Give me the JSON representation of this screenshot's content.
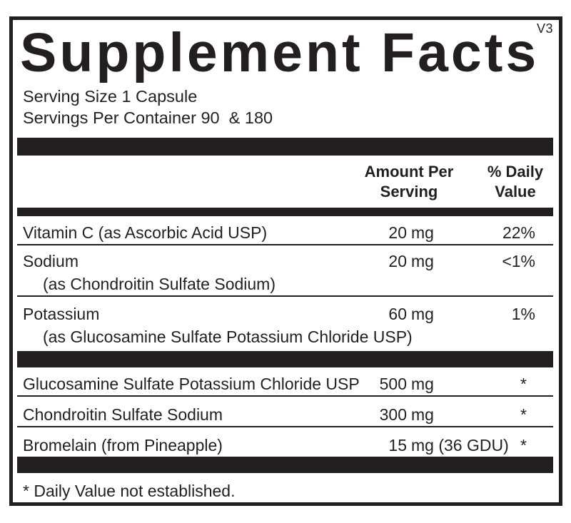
{
  "colors": {
    "ink": "#231f20",
    "background": "#ffffff"
  },
  "version": "V3",
  "title": "Supplement Facts",
  "serving": {
    "size_line": "Serving Size 1 Capsule",
    "per_container_line": "Servings Per Container 90  & 180"
  },
  "columns": {
    "amount_header_line1": "Amount Per",
    "amount_header_line2": "Serving",
    "daily_value_header_line1": "% Daily",
    "daily_value_header_line2": "Value"
  },
  "rows": [
    {
      "name": "Vitamin C (as Ascorbic Acid USP)",
      "num": "20",
      "unit": "mg",
      "pct": "22%"
    },
    {
      "name": "Sodium",
      "sub": "(as Chondroitin Sulfate Sodium)",
      "num": "20",
      "unit": "mg",
      "pct": "<1%"
    },
    {
      "name": "Potassium",
      "sub": "(as Glucosamine Sulfate Potassium Chloride USP)",
      "num": "60",
      "unit": "mg",
      "pct": "1%"
    },
    {
      "name": "Glucosamine Sulfate Potassium Chloride USP",
      "num": "500",
      "unit": "mg",
      "pct": "*"
    },
    {
      "name": "Chondroitin Sulfate Sodium",
      "num": "300",
      "unit": "mg",
      "pct": "*"
    },
    {
      "name": "Bromelain (from Pineapple)",
      "num": "15",
      "unit": "mg (36 GDU)",
      "pct": "*"
    }
  ],
  "footnote": "* Daily Value not established."
}
